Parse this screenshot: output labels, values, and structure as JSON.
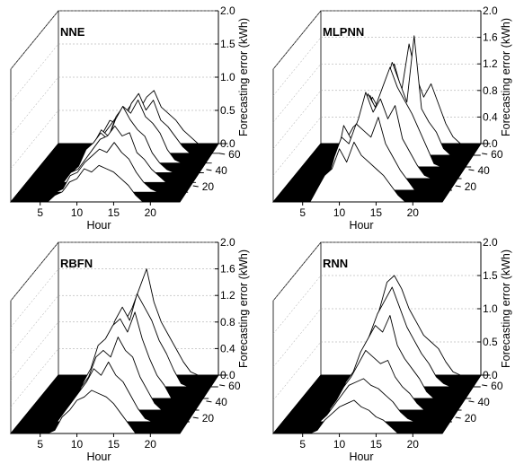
{
  "chart_data": [
    {
      "type": "surface-3d",
      "title": "NNE",
      "xlabel": "Hour",
      "ylabel": "",
      "zlabel": "Forecasting  error (kWh)",
      "x_ticks": [
        "5",
        "10",
        "15",
        "20"
      ],
      "y_ticks": [
        "20",
        "40",
        "60"
      ],
      "z_ticks": [
        "0.0",
        "0.5",
        "1.0",
        "1.5",
        "2.0"
      ],
      "zlim": [
        0,
        2.0
      ],
      "series": [
        {
          "values": [
            0,
            0,
            0,
            0,
            0,
            0,
            0.15,
            0.35,
            0.3,
            0.45,
            0.6,
            0.5,
            0.7,
            0.8,
            0.55,
            0.45,
            0.35,
            0.2,
            0.1,
            0,
            0,
            0,
            0,
            0
          ]
        },
        {
          "values": [
            0,
            0,
            0,
            0,
            0,
            0,
            0.1,
            0.25,
            0.4,
            0.55,
            0.45,
            0.75,
            0.9,
            0.65,
            0.8,
            0.5,
            0.4,
            0.25,
            0.1,
            0,
            0,
            0,
            0,
            0
          ]
        },
        {
          "values": [
            0,
            0,
            0,
            0,
            0,
            0,
            0.2,
            0.3,
            0.5,
            0.4,
            0.7,
            0.85,
            0.75,
            0.95,
            0.7,
            0.6,
            0.45,
            0.2,
            0.05,
            0,
            0,
            0,
            0,
            0
          ]
        },
        {
          "values": [
            0,
            0,
            0,
            0,
            0,
            0,
            0.1,
            0.35,
            0.45,
            0.6,
            0.5,
            0.8,
            1.0,
            0.8,
            0.65,
            0.55,
            0.3,
            0.15,
            0.05,
            0,
            0,
            0,
            0,
            0
          ]
        },
        {
          "values": [
            0,
            0,
            0,
            0,
            0,
            0,
            0.15,
            0.2,
            0.35,
            0.5,
            0.65,
            0.7,
            0.85,
            0.7,
            0.75,
            0.45,
            0.35,
            0.2,
            0.1,
            0,
            0,
            0,
            0,
            0
          ]
        },
        {
          "values": [
            0,
            0,
            0,
            0,
            0,
            0,
            0.05,
            0.25,
            0.3,
            0.45,
            0.55,
            0.65,
            0.6,
            0.75,
            0.6,
            0.5,
            0.3,
            0.15,
            0.05,
            0,
            0,
            0,
            0,
            0
          ]
        },
        {
          "values": [
            0,
            0,
            0,
            0,
            0,
            0,
            0.1,
            0.15,
            0.3,
            0.35,
            0.5,
            0.45,
            0.55,
            0.5,
            0.45,
            0.35,
            0.25,
            0.1,
            0,
            0,
            0,
            0,
            0,
            0
          ]
        }
      ]
    },
    {
      "type": "surface-3d",
      "title": "MLPNN",
      "xlabel": "Hour",
      "ylabel": "",
      "zlabel": "Forecasting  error (kWh)",
      "x_ticks": [
        "5",
        "10",
        "15",
        "20"
      ],
      "y_ticks": [
        "20",
        "40",
        "60"
      ],
      "z_ticks": [
        "0.0",
        "0.4",
        "0.8",
        "1.2",
        "1.6",
        "2.0"
      ],
      "zlim": [
        0,
        2.0
      ],
      "series": [
        {
          "values": [
            0,
            0,
            0,
            0,
            0,
            0,
            0.3,
            0.7,
            0.5,
            0.9,
            1.2,
            0.8,
            1.5,
            1.0,
            0.7,
            0.9,
            0.6,
            0.3,
            0.1,
            0,
            0,
            0,
            0,
            0
          ]
        },
        {
          "values": [
            0,
            0,
            0,
            0,
            0,
            0,
            0.2,
            0.5,
            0.9,
            0.6,
            1.0,
            1.4,
            1.1,
            0.8,
            1.8,
            0.7,
            0.5,
            0.35,
            0.1,
            0,
            0,
            0,
            0,
            0
          ]
        },
        {
          "values": [
            0,
            0,
            0,
            0,
            0,
            0,
            0.4,
            0.6,
            0.7,
            1.1,
            0.9,
            1.2,
            1.5,
            1.2,
            1.0,
            0.8,
            0.55,
            0.3,
            0.05,
            0,
            0,
            0,
            0,
            0
          ]
        },
        {
          "values": [
            0,
            0,
            0,
            0,
            0,
            0,
            0.25,
            0.8,
            0.6,
            0.9,
            1.3,
            1.0,
            1.2,
            0.9,
            1.1,
            0.6,
            0.4,
            0.2,
            0.05,
            0,
            0,
            0,
            0,
            0
          ]
        },
        {
          "values": [
            0,
            0,
            0,
            0,
            0,
            0,
            0.1,
            0.5,
            0.8,
            0.7,
            1.0,
            0.9,
            0.8,
            1.1,
            0.7,
            0.5,
            0.3,
            0.15,
            0,
            0,
            0,
            0,
            0,
            0
          ]
        },
        {
          "values": [
            0,
            0,
            0,
            0,
            0,
            0,
            0.2,
            0.4,
            0.5,
            0.8,
            0.6,
            0.9,
            0.7,
            0.6,
            0.5,
            0.4,
            0.25,
            0.1,
            0,
            0,
            0,
            0,
            0,
            0
          ]
        }
      ]
    },
    {
      "type": "surface-3d",
      "title": "RBFN",
      "xlabel": "Hour",
      "ylabel": "",
      "zlabel": "Forecasting  error (kWh)",
      "x_ticks": [
        "5",
        "10",
        "15",
        "20"
      ],
      "y_ticks": [
        "20",
        "40",
        "60"
      ],
      "z_ticks": [
        "0.0",
        "0.4",
        "0.8",
        "1.2",
        "1.6",
        "2.0"
      ],
      "zlim": [
        0,
        2.0
      ],
      "series": [
        {
          "values": [
            0,
            0,
            0,
            0,
            0,
            0,
            0.3,
            0.4,
            0.6,
            0.8,
            1.0,
            1.3,
            1.6,
            1.1,
            0.8,
            0.6,
            0.4,
            0.2,
            0.05,
            0,
            0,
            0,
            0,
            0
          ]
        },
        {
          "values": [
            0,
            0,
            0,
            0,
            0,
            0,
            0.2,
            0.5,
            0.7,
            1.0,
            1.2,
            1.0,
            1.4,
            1.2,
            1.0,
            0.7,
            0.5,
            0.25,
            0.05,
            0,
            0,
            0,
            0,
            0
          ]
        },
        {
          "values": [
            0,
            0,
            0,
            0,
            0,
            0,
            0.25,
            0.45,
            0.8,
            0.9,
            1.1,
            1.2,
            1.0,
            1.3,
            0.9,
            0.6,
            0.35,
            0.2,
            0,
            0,
            0,
            0,
            0,
            0
          ]
        },
        {
          "values": [
            0,
            0,
            0,
            0,
            0,
            0,
            0.1,
            0.35,
            0.5,
            0.8,
            0.9,
            0.8,
            1.1,
            0.9,
            0.8,
            0.5,
            0.3,
            0.1,
            0,
            0,
            0,
            0,
            0,
            0
          ]
        },
        {
          "values": [
            0,
            0,
            0,
            0,
            0,
            0,
            0.15,
            0.3,
            0.45,
            0.6,
            0.8,
            0.7,
            0.9,
            0.7,
            0.6,
            0.4,
            0.2,
            0.05,
            0,
            0,
            0,
            0,
            0,
            0
          ]
        },
        {
          "values": [
            0,
            0,
            0,
            0,
            0,
            0,
            0.05,
            0.25,
            0.35,
            0.5,
            0.55,
            0.65,
            0.6,
            0.55,
            0.45,
            0.3,
            0.15,
            0,
            0,
            0,
            0,
            0,
            0,
            0
          ]
        }
      ]
    },
    {
      "type": "surface-3d",
      "title": "RNN",
      "xlabel": "Hour",
      "ylabel": "",
      "zlabel": "Forecasting  error (kWh)",
      "x_ticks": [
        "5",
        "10",
        "15",
        "20"
      ],
      "y_ticks": [
        "20",
        "40",
        "60"
      ],
      "z_ticks": [
        "0.0",
        "0.5",
        "1.0",
        "1.5",
        "2.0"
      ],
      "zlim": [
        0,
        2.0
      ],
      "series": [
        {
          "values": [
            0,
            0,
            0,
            0,
            0,
            0,
            0.3,
            0.6,
            1.0,
            1.4,
            1.5,
            1.3,
            1.0,
            0.8,
            0.6,
            0.5,
            0.4,
            0.2,
            0.05,
            0,
            0,
            0,
            0,
            0
          ]
        },
        {
          "values": [
            0,
            0,
            0,
            0,
            0,
            0,
            0.2,
            0.5,
            0.8,
            1.1,
            1.3,
            1.5,
            1.2,
            0.9,
            0.7,
            0.5,
            0.35,
            0.15,
            0.05,
            0,
            0,
            0,
            0,
            0
          ]
        },
        {
          "values": [
            0,
            0,
            0,
            0,
            0,
            0,
            0.25,
            0.4,
            0.7,
            0.9,
            1.1,
            1.0,
            1.25,
            0.8,
            0.6,
            0.45,
            0.3,
            0.1,
            0,
            0,
            0,
            0,
            0,
            0
          ]
        },
        {
          "values": [
            0,
            0,
            0,
            0,
            0,
            0,
            0.15,
            0.35,
            0.5,
            0.7,
            0.9,
            0.8,
            0.7,
            0.75,
            0.5,
            0.35,
            0.25,
            0.1,
            0,
            0,
            0,
            0,
            0,
            0
          ]
        },
        {
          "values": [
            0,
            0,
            0,
            0,
            0,
            0,
            0.1,
            0.25,
            0.4,
            0.55,
            0.6,
            0.65,
            0.55,
            0.5,
            0.4,
            0.3,
            0.15,
            0.05,
            0,
            0,
            0,
            0,
            0,
            0
          ]
        },
        {
          "values": [
            0,
            0,
            0,
            0,
            0,
            0,
            0.05,
            0.2,
            0.3,
            0.4,
            0.45,
            0.5,
            0.4,
            0.35,
            0.25,
            0.2,
            0.1,
            0,
            0,
            0,
            0,
            0,
            0,
            0
          ]
        }
      ]
    }
  ]
}
